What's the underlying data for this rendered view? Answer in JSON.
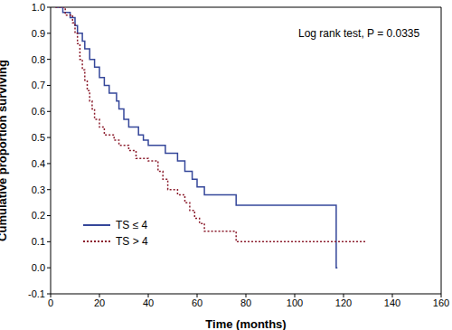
{
  "chart_data": {
    "type": "step",
    "x_label": "Time (months)",
    "y_label": "Cumulative proportion surviving",
    "annotations": [
      "Log rank test, P = 0.0335"
    ],
    "xlim": [
      0,
      160
    ],
    "xticks": [
      0,
      20,
      40,
      60,
      80,
      100,
      120,
      140,
      160
    ],
    "ylim": [
      -0.1,
      1.0
    ],
    "yticks": [
      -0.1,
      {
        "value": 0,
        "label": "0.0"
      },
      0.1,
      0.2,
      0.3,
      0.4,
      0.5,
      0.6,
      0.7,
      0.8,
      0.9,
      {
        "value": 1,
        "label": "1.0"
      }
    ],
    "grid": false,
    "legend": "lower left",
    "series": [
      {
        "name": "TS ≤ 4",
        "color": "#35479a",
        "line_style": "solid",
        "x": [
          2,
          5,
          8,
          10,
          11,
          13,
          14,
          16,
          18,
          20,
          22,
          24,
          27,
          28,
          30,
          32,
          36,
          38,
          40,
          47,
          52,
          55,
          58,
          60,
          63,
          76,
          117,
          117.5
        ],
        "values": [
          1.0,
          0.98,
          0.96,
          0.93,
          0.9,
          0.87,
          0.84,
          0.8,
          0.77,
          0.73,
          0.7,
          0.67,
          0.64,
          0.61,
          0.57,
          0.54,
          0.51,
          0.49,
          0.47,
          0.44,
          0.41,
          0.37,
          0.34,
          0.31,
          0.28,
          0.24,
          0.0,
          0.0
        ]
      },
      {
        "name": "TS > 4",
        "color": "#8b1c2c",
        "line_style": "dotted",
        "x": [
          2,
          6,
          9,
          10,
          11,
          12,
          13,
          14,
          15,
          16,
          17,
          18,
          20,
          22,
          26,
          28,
          32,
          35,
          40,
          44,
          46,
          48,
          52,
          55,
          57,
          59,
          61,
          63,
          76,
          129
        ],
        "values": [
          1.0,
          0.97,
          0.94,
          0.9,
          0.86,
          0.8,
          0.76,
          0.72,
          0.68,
          0.64,
          0.61,
          0.57,
          0.54,
          0.51,
          0.49,
          0.47,
          0.45,
          0.42,
          0.41,
          0.37,
          0.34,
          0.3,
          0.28,
          0.25,
          0.22,
          0.19,
          0.17,
          0.14,
          0.1,
          0.1
        ]
      }
    ]
  }
}
